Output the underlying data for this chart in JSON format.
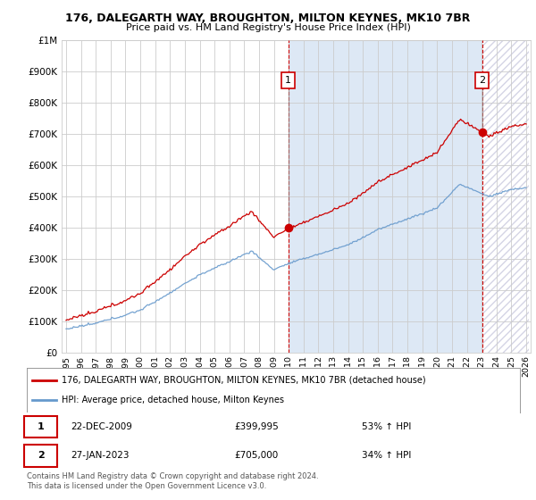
{
  "title": "176, DALEGARTH WAY, BROUGHTON, MILTON KEYNES, MK10 7BR",
  "subtitle": "Price paid vs. HM Land Registry's House Price Index (HPI)",
  "ylim": [
    0,
    1000000
  ],
  "yticks": [
    0,
    100000,
    200000,
    300000,
    400000,
    500000,
    600000,
    700000,
    800000,
    900000,
    1000000
  ],
  "ytick_labels": [
    "£0",
    "£100K",
    "£200K",
    "£300K",
    "£400K",
    "£500K",
    "£600K",
    "£700K",
    "£800K",
    "£900K",
    "£1M"
  ],
  "hpi_color": "#6699cc",
  "price_color": "#cc0000",
  "background_color": "#ffffff",
  "plot_bg_color": "#ffffff",
  "shade_color": "#dde8f5",
  "grid_color": "#cccccc",
  "legend_label_price": "176, DALEGARTH WAY, BROUGHTON, MILTON KEYNES, MK10 7BR (detached house)",
  "legend_label_hpi": "HPI: Average price, detached house, Milton Keynes",
  "transaction_1_date": "22-DEC-2009",
  "transaction_1_price": "£399,995",
  "transaction_1_hpi": "53% ↑ HPI",
  "transaction_2_date": "27-JAN-2023",
  "transaction_2_price": "£705,000",
  "transaction_2_hpi": "34% ↑ HPI",
  "copyright": "Contains HM Land Registry data © Crown copyright and database right 2024.\nThis data is licensed under the Open Government Licence v3.0.",
  "x_start_year": 1995,
  "x_end_year": 2026
}
